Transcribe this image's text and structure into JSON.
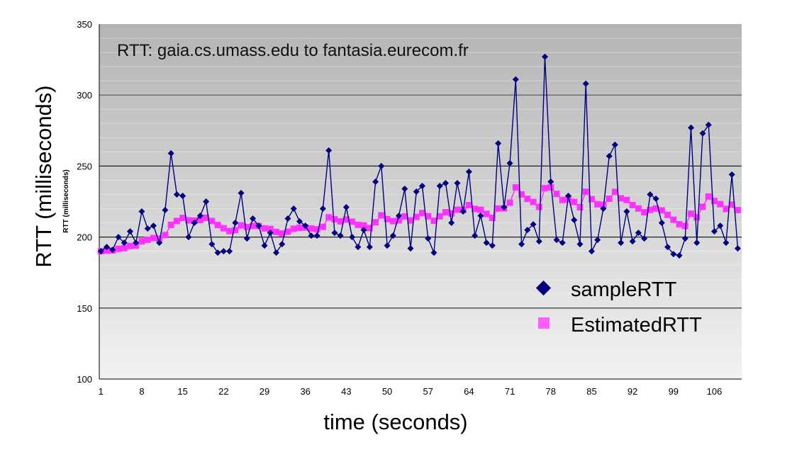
{
  "chart_data": {
    "type": "line",
    "title": "RTT: gaia.cs.umass.edu to fantasia.eurecom.fr",
    "xlabel": "time (seconds)",
    "ylabel": "RTT (milliseconds)",
    "ylabel_small": "RTT (milliseconds)",
    "ylim": [
      100,
      350
    ],
    "xlim": [
      1,
      110
    ],
    "yticks": [
      100,
      150,
      200,
      250,
      300,
      350
    ],
    "xticks": [
      1,
      8,
      15,
      22,
      29,
      36,
      43,
      50,
      57,
      64,
      71,
      78,
      85,
      92,
      99,
      106
    ],
    "grid": true,
    "legend_position": "bottom-right",
    "colors": {
      "sampleRTT": "#000080",
      "EstimatedRTT": "#ff33ff"
    },
    "series": [
      {
        "name": "sampleRTT",
        "marker": "diamond",
        "values": [
          190,
          193,
          191,
          200,
          196,
          204,
          196,
          218,
          206,
          208,
          196,
          219,
          259,
          230,
          229,
          200,
          210,
          215,
          225,
          195,
          189,
          190,
          190,
          210,
          231,
          199,
          213,
          208,
          194,
          203,
          189,
          195,
          213,
          220,
          211,
          208,
          201,
          201,
          220,
          261,
          203,
          201,
          221,
          200,
          193,
          205,
          193,
          239,
          250,
          194,
          201,
          215,
          234,
          192,
          232,
          236,
          199,
          189,
          236,
          238,
          210,
          238,
          218,
          246,
          201,
          215,
          196,
          194,
          266,
          221,
          252,
          311,
          195,
          205,
          209,
          197,
          327,
          239,
          198,
          196,
          229,
          212,
          195,
          308,
          190,
          198,
          220,
          257,
          265,
          196,
          218,
          197,
          203,
          199,
          230,
          227,
          210,
          193,
          188,
          187,
          199,
          277,
          196,
          273,
          279,
          204,
          208,
          196,
          244,
          192
        ]
      },
      {
        "name": "EstimatedRTT",
        "marker": "square",
        "values": [
          190,
          190.4,
          190.5,
          191.7,
          192.2,
          193.7,
          194,
          197,
          198.1,
          199.3,
          198.9,
          201.4,
          208.6,
          211.3,
          213.5,
          211.8,
          211.6,
          212,
          213.6,
          211.3,
          208.5,
          206.2,
          204.2,
          204.9,
          208.2,
          207.1,
          207.8,
          207.8,
          206.1,
          205.7,
          203.6,
          202.5,
          203.8,
          205.8,
          206.5,
          206.7,
          206,
          205.4,
          207.2,
          213.9,
          212.5,
          211.1,
          212.3,
          210.8,
          208.6,
          208.2,
          206.3,
          210.4,
          215.3,
          212.6,
          211.2,
          211.7,
          214.5,
          211.7,
          214.2,
          216.9,
          214.7,
          211.5,
          214.6,
          217.5,
          216.6,
          219.3,
          219.1,
          222.5,
          219.8,
          219.2,
          216.3,
          213.5,
          220.1,
          220.2,
          224.2,
          235,
          230,
          226.9,
          224.7,
          221.2,
          234.4,
          235,
          230.4,
          226.1,
          226.5,
          224.7,
          221,
          231.9,
          226.7,
          223.1,
          222.7,
          227,
          231.8,
          227.3,
          226.1,
          222.5,
          220.1,
          217.5,
          219.1,
          220.1,
          218.8,
          215.6,
          212.2,
          209,
          207.8,
          216.4,
          213.9,
          221.3,
          228.5,
          225.4,
          223.2,
          219.8,
          222.8,
          219
        ]
      }
    ]
  }
}
